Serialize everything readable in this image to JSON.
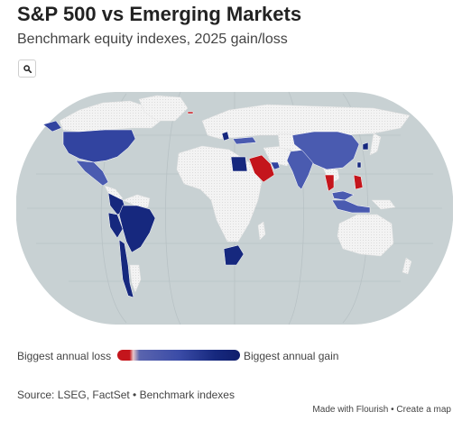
{
  "header": {
    "title": "S&P 500 vs Emerging Markets",
    "subtitle": "Benchmark equity indexes, 2025 gain/loss"
  },
  "toolbar": {
    "search_icon": "search-icon"
  },
  "map": {
    "projection": "equal-earth",
    "colors": {
      "ocean": "#c8d1d3",
      "no_data": "#f1f1f1",
      "loss": "#c4151c",
      "gain_light": "#4a5bb0",
      "gain_mid": "#3244a0",
      "gain_dark": "#16287e"
    },
    "countries": [
      {
        "name": "United States",
        "status": "gain",
        "shade": "mid"
      },
      {
        "name": "Mexico",
        "status": "gain",
        "shade": "light"
      },
      {
        "name": "Colombia",
        "status": "gain",
        "shade": "dark"
      },
      {
        "name": "Peru",
        "status": "gain",
        "shade": "dark"
      },
      {
        "name": "Brazil",
        "status": "gain",
        "shade": "dark"
      },
      {
        "name": "Chile",
        "status": "gain",
        "shade": "dark"
      },
      {
        "name": "Greece",
        "status": "gain",
        "shade": "dark"
      },
      {
        "name": "Turkey",
        "status": "gain",
        "shade": "light"
      },
      {
        "name": "Egypt",
        "status": "gain",
        "shade": "dark"
      },
      {
        "name": "Saudi Arabia",
        "status": "loss",
        "shade": "loss"
      },
      {
        "name": "Kuwait",
        "status": "gain",
        "shade": "mid"
      },
      {
        "name": "Qatar",
        "status": "gain",
        "shade": "mid"
      },
      {
        "name": "United Arab Emirates",
        "status": "gain",
        "shade": "mid"
      },
      {
        "name": "India",
        "status": "gain",
        "shade": "light"
      },
      {
        "name": "China",
        "status": "gain",
        "shade": "light"
      },
      {
        "name": "South Korea",
        "status": "gain",
        "shade": "dark"
      },
      {
        "name": "Taiwan",
        "status": "gain",
        "shade": "dark"
      },
      {
        "name": "Thailand",
        "status": "loss",
        "shade": "loss"
      },
      {
        "name": "Malaysia",
        "status": "gain",
        "shade": "light"
      },
      {
        "name": "Indonesia",
        "status": "gain",
        "shade": "light"
      },
      {
        "name": "Philippines",
        "status": "loss",
        "shade": "loss"
      },
      {
        "name": "South Africa",
        "status": "gain",
        "shade": "dark"
      }
    ]
  },
  "legend": {
    "low_label": "Biggest annual loss",
    "high_label": "Biggest annual gain"
  },
  "footer": {
    "source": "Source: LSEG, FactSet • Benchmark indexes",
    "made_with": "Made with Flourish",
    "separator": " • ",
    "create_map": "Create a map"
  }
}
